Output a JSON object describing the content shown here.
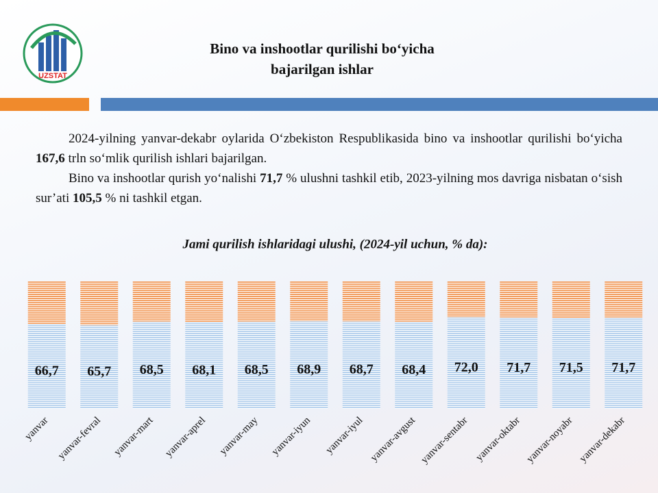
{
  "header": {
    "logo": "UZSTAT",
    "title": [
      "Bino va inshootlar qurilishi bo‘yicha",
      "bajarilgan ishlar"
    ]
  },
  "text": {
    "paragraphs": [
      [
        "2024-yilning yanvar-dekabr oylarida O‘zbekiston  Respublikasida bino va inshootlar qurilishi bo‘yicha ",
        "167,6",
        " trln so‘mlik qurilish ishlari bajarilgan."
      ],
      [
        "Bino va inshootlar qurish yo‘nalishi ",
        "71,7",
        " % ulushni tashkil etib, 2023-yilning mos davriga nisbatan o‘sish sur’ati ",
        "105,5",
        " % ni tashkil etgan."
      ]
    ]
  },
  "chart_data": {
    "type": "stacked-bar",
    "title": "Jami qurilish ishlaridagi ulushi, (2024-yil  uchun, % da):",
    "categories": [
      "yanvar",
      "yanvar-fevral",
      "yanvar-mart",
      "yanvar-aprel",
      "yanvar-may",
      "yanvar-iyun",
      "yanvar-iyul",
      "yanvar-avgust",
      "yanvar-sentabr",
      "yanvar-oktabr",
      "yanvar-noyabr",
      "yanvar-dekabr"
    ],
    "series": [
      {
        "color": "#b9d3ee",
        "values": [
          66.7,
          65.7,
          68.5,
          68.1,
          68.5,
          68.9,
          68.7,
          68.4,
          72.0,
          71.7,
          71.5,
          71.7
        ],
        "value_labels": [
          "66,7",
          "65,7",
          "68,5",
          "68,1",
          "68,5",
          "68,9",
          "68,7",
          "68,4",
          "72,0",
          "71,7",
          "71,5",
          "71,7"
        ]
      },
      {
        "color": "#f2a064",
        "values": [
          33.3,
          34.3,
          31.5,
          31.9,
          31.5,
          31.1,
          31.3,
          31.6,
          28.0,
          28.3,
          28.5,
          28.3
        ]
      }
    ],
    "ylim": [
      0,
      100
    ]
  }
}
